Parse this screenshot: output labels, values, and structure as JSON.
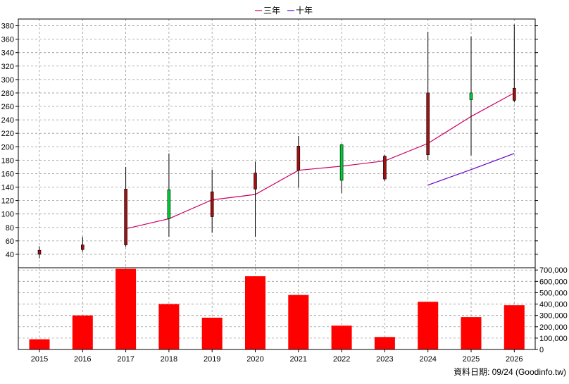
{
  "legend": {
    "three_year_label": "三年",
    "ten_year_label": "十年"
  },
  "footer": {
    "source_note": "資料日期: 09/24 (Goodinfo.tw)"
  },
  "colors": {
    "up_candle": "#a01010",
    "down_candle": "#00cc33",
    "wick": "#000000",
    "three_year_line": "#cc0066",
    "ten_year_line": "#6600cc",
    "volume_bar": "#ff0000",
    "grid": "#999999"
  },
  "chart_data": [
    {
      "type": "candlestick",
      "title": "",
      "categories": [
        "2015",
        "2016",
        "2017",
        "2018",
        "2019",
        "2020",
        "2021",
        "2022",
        "2023",
        "2024",
        "2025",
        "2026"
      ],
      "ylim": [
        20,
        390
      ],
      "yticks": [
        40,
        60,
        80,
        100,
        120,
        140,
        160,
        180,
        200,
        220,
        240,
        260,
        280,
        300,
        320,
        340,
        360,
        380
      ],
      "grid": true,
      "candles": [
        {
          "open": 40,
          "close": 46,
          "high": 52,
          "low": 34
        },
        {
          "open": 47,
          "close": 54,
          "high": 66,
          "low": 44
        },
        {
          "open": 54,
          "close": 137,
          "high": 170,
          "low": 51
        },
        {
          "open": 136,
          "close": 93,
          "high": 190,
          "low": 66
        },
        {
          "open": 96,
          "close": 133,
          "high": 166,
          "low": 72
        },
        {
          "open": 137,
          "close": 161,
          "high": 178,
          "low": 66
        },
        {
          "open": 165,
          "close": 201,
          "high": 216,
          "low": 139
        },
        {
          "open": 203,
          "close": 150,
          "high": 204,
          "low": 131
        },
        {
          "open": 152,
          "close": 186,
          "high": 188,
          "low": 149
        },
        {
          "open": 188,
          "close": 280,
          "high": 371,
          "low": 180
        },
        {
          "open": 280,
          "close": 270,
          "high": 364,
          "low": 187
        },
        {
          "open": 269,
          "close": 287,
          "high": 382,
          "low": 266
        }
      ],
      "series": [
        {
          "name": "三年",
          "values": [
            null,
            null,
            78,
            93,
            121,
            129,
            165,
            171,
            179,
            205,
            245,
            280
          ]
        },
        {
          "name": "十年",
          "values": [
            null,
            null,
            null,
            null,
            null,
            null,
            null,
            null,
            null,
            143,
            166,
            190
          ]
        }
      ]
    },
    {
      "type": "bar",
      "title": "",
      "categories": [
        "2015",
        "2016",
        "2017",
        "2018",
        "2019",
        "2020",
        "2021",
        "2022",
        "2023",
        "2024",
        "2025",
        "2026"
      ],
      "values": [
        90000,
        300000,
        710000,
        400000,
        280000,
        645000,
        480000,
        210000,
        110000,
        420000,
        285000,
        390000
      ],
      "ylim": [
        0,
        720000
      ],
      "yticks": [
        0,
        100000,
        200000,
        300000,
        400000,
        500000,
        600000,
        700000
      ],
      "ytick_labels": [
        "0",
        "100,000",
        "200,000",
        "300,000",
        "400,000",
        "500,000",
        "600,000",
        "700,000"
      ],
      "grid": true
    }
  ]
}
